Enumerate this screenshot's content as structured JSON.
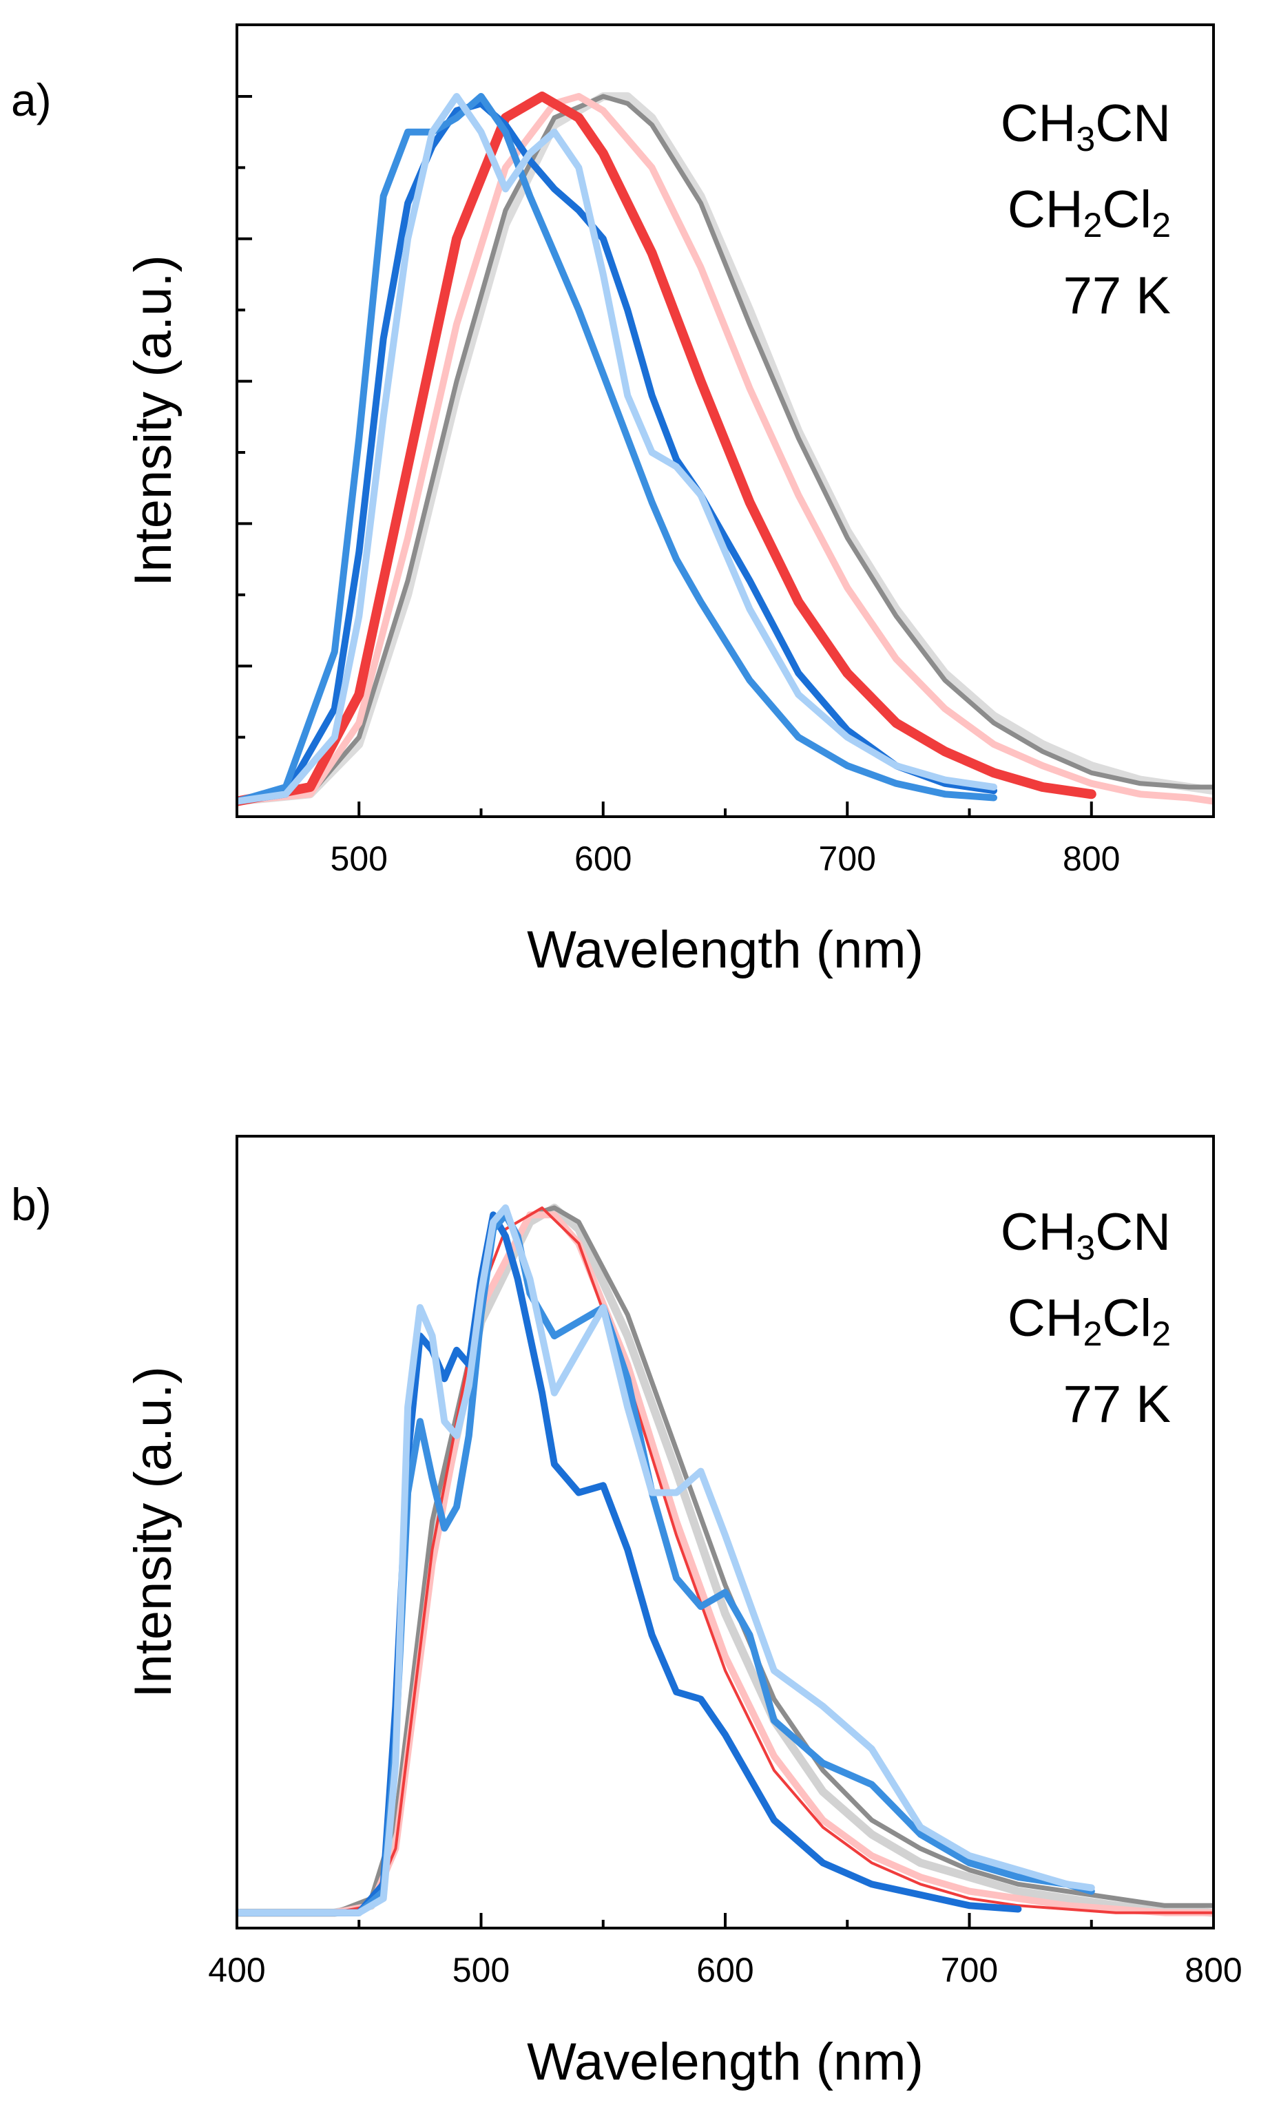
{
  "chart_data": [
    {
      "type": "line",
      "panel_label": "a)",
      "xlabel": "Wavelength (nm)",
      "ylabel": "Intensity (a.u.)",
      "xlim": [
        450,
        850
      ],
      "ylim": [
        0,
        1.0
      ],
      "x_ticks": [
        500,
        600,
        700,
        800
      ],
      "x_tick_labels": [
        "500",
        "600",
        "700",
        "800"
      ],
      "y_ticks_major": [
        0.2,
        0.4,
        0.6,
        0.8,
        1.0
      ],
      "y_tick_labels_shown": false,
      "grid": false,
      "legend": {
        "position": "top-right",
        "entries": [
          {
            "base": "CH",
            "sub1": "3",
            "mid": "CN",
            "sub2": "",
            "color": "#808080"
          },
          {
            "base": "CH",
            "sub1": "2",
            "mid": "Cl",
            "sub2": "2",
            "color": "#f03c3c"
          },
          {
            "base": "77 K",
            "sub1": "",
            "mid": "",
            "sub2": "",
            "color": "#1a6fd6"
          }
        ]
      },
      "series": [
        {
          "name": "CH3CN (light)",
          "color": "#dcdcdc",
          "width": 12,
          "x": [
            450,
            480,
            500,
            520,
            540,
            560,
            580,
            600,
            610,
            620,
            640,
            660,
            680,
            700,
            720,
            740,
            760,
            780,
            800,
            820,
            840,
            850
          ],
          "y": [
            0.01,
            0.02,
            0.09,
            0.3,
            0.58,
            0.82,
            0.96,
            1.0,
            1.0,
            0.97,
            0.86,
            0.7,
            0.53,
            0.39,
            0.28,
            0.19,
            0.13,
            0.09,
            0.06,
            0.04,
            0.03,
            0.025
          ]
        },
        {
          "name": "CH3CN",
          "color": "#8c8c8c",
          "width": 7,
          "x": [
            450,
            480,
            500,
            520,
            540,
            560,
            580,
            600,
            610,
            620,
            640,
            660,
            680,
            700,
            720,
            740,
            760,
            780,
            800,
            820,
            840,
            850
          ],
          "y": [
            0.01,
            0.02,
            0.1,
            0.32,
            0.6,
            0.84,
            0.97,
            1.0,
            0.99,
            0.96,
            0.85,
            0.68,
            0.52,
            0.38,
            0.27,
            0.18,
            0.12,
            0.08,
            0.05,
            0.035,
            0.03,
            0.03
          ]
        },
        {
          "name": "CH2Cl2 (light)",
          "color": "#ffc2c2",
          "width": 10,
          "x": [
            450,
            480,
            500,
            520,
            540,
            560,
            580,
            590,
            600,
            620,
            640,
            660,
            680,
            700,
            720,
            740,
            760,
            780,
            800,
            820,
            840,
            850
          ],
          "y": [
            0.01,
            0.02,
            0.12,
            0.38,
            0.68,
            0.9,
            0.99,
            1.0,
            0.98,
            0.9,
            0.76,
            0.59,
            0.44,
            0.31,
            0.21,
            0.14,
            0.09,
            0.06,
            0.035,
            0.02,
            0.015,
            0.01
          ]
        },
        {
          "name": "CH2Cl2",
          "color": "#f03c3c",
          "width": 14,
          "x": [
            450,
            480,
            500,
            520,
            540,
            560,
            575,
            590,
            600,
            620,
            640,
            660,
            680,
            700,
            720,
            740,
            760,
            780,
            800
          ],
          "y": [
            0.01,
            0.03,
            0.16,
            0.48,
            0.8,
            0.97,
            1.0,
            0.97,
            0.92,
            0.78,
            0.6,
            0.43,
            0.29,
            0.19,
            0.12,
            0.08,
            0.05,
            0.03,
            0.02
          ]
        },
        {
          "name": "77 K (dark)",
          "color": "#1a6fd6",
          "width": 10,
          "x": [
            450,
            470,
            490,
            500,
            510,
            520,
            530,
            540,
            550,
            560,
            570,
            580,
            590,
            600,
            610,
            620,
            630,
            640,
            660,
            680,
            700,
            720,
            740,
            760
          ],
          "y": [
            0.01,
            0.02,
            0.14,
            0.36,
            0.66,
            0.85,
            0.93,
            0.98,
            0.99,
            0.96,
            0.91,
            0.87,
            0.84,
            0.8,
            0.7,
            0.58,
            0.49,
            0.44,
            0.32,
            0.19,
            0.11,
            0.06,
            0.035,
            0.025
          ]
        },
        {
          "name": "77 K (medium)",
          "color": "#3a8fe0",
          "width": 10,
          "x": [
            450,
            470,
            490,
            500,
            510,
            520,
            530,
            540,
            550,
            560,
            570,
            580,
            590,
            600,
            610,
            620,
            630,
            640,
            660,
            680,
            700,
            720,
            740,
            760
          ],
          "y": [
            0.01,
            0.03,
            0.22,
            0.52,
            0.86,
            0.95,
            0.95,
            0.97,
            1.0,
            0.95,
            0.86,
            0.78,
            0.7,
            0.61,
            0.52,
            0.43,
            0.35,
            0.29,
            0.18,
            0.1,
            0.06,
            0.035,
            0.02,
            0.015
          ]
        },
        {
          "name": "77 K (light)",
          "color": "#a9d0f7",
          "width": 10,
          "x": [
            450,
            470,
            490,
            500,
            510,
            520,
            530,
            540,
            550,
            560,
            570,
            580,
            590,
            600,
            610,
            620,
            630,
            640,
            660,
            680,
            700,
            720,
            740,
            760
          ],
          "y": [
            0.01,
            0.02,
            0.1,
            0.27,
            0.55,
            0.8,
            0.95,
            1.0,
            0.95,
            0.87,
            0.92,
            0.95,
            0.9,
            0.75,
            0.58,
            0.5,
            0.48,
            0.44,
            0.28,
            0.16,
            0.1,
            0.06,
            0.04,
            0.03
          ]
        }
      ]
    },
    {
      "type": "line",
      "panel_label": "b)",
      "xlabel": "Wavelength (nm)",
      "ylabel": "Intensity (a.u.)",
      "xlim": [
        400,
        800
      ],
      "ylim": [
        0,
        1.0
      ],
      "x_ticks": [
        400,
        500,
        600,
        700,
        800
      ],
      "x_tick_labels": [
        "400",
        "500",
        "600",
        "700",
        "800"
      ],
      "y_ticks_major": [],
      "y_tick_labels_shown": false,
      "grid": false,
      "legend": {
        "position": "top-right",
        "entries": [
          {
            "base": "CH",
            "sub1": "3",
            "mid": "CN",
            "sub2": "",
            "color": "#808080"
          },
          {
            "base": "CH",
            "sub1": "2",
            "mid": "Cl",
            "sub2": "2",
            "color": "#f03c3c"
          },
          {
            "base": "77 K",
            "sub1": "",
            "mid": "",
            "sub2": "",
            "color": "#1a6fd6"
          }
        ]
      },
      "series": [
        {
          "name": "CH3CN (light)",
          "color": "#d2d2d2",
          "width": 12,
          "x": [
            400,
            440,
            455,
            465,
            480,
            500,
            520,
            530,
            540,
            560,
            580,
            600,
            620,
            640,
            660,
            680,
            700,
            720,
            740,
            760,
            780,
            800
          ],
          "y": [
            0.01,
            0.01,
            0.02,
            0.12,
            0.52,
            0.84,
            0.98,
            1.0,
            0.97,
            0.82,
            0.63,
            0.43,
            0.28,
            0.18,
            0.12,
            0.08,
            0.06,
            0.04,
            0.03,
            0.02,
            0.015,
            0.01
          ]
        },
        {
          "name": "CH3CN",
          "color": "#8c8c8c",
          "width": 7,
          "x": [
            400,
            440,
            455,
            465,
            480,
            500,
            520,
            530,
            540,
            560,
            580,
            600,
            620,
            640,
            660,
            680,
            700,
            720,
            740,
            760,
            780,
            800
          ],
          "y": [
            0.01,
            0.01,
            0.03,
            0.14,
            0.56,
            0.86,
            0.99,
            1.0,
            0.98,
            0.85,
            0.66,
            0.47,
            0.31,
            0.21,
            0.14,
            0.1,
            0.07,
            0.05,
            0.04,
            0.03,
            0.02,
            0.02
          ]
        },
        {
          "name": "CH2Cl2 (light)",
          "color": "#ffc0c0",
          "width": 10,
          "x": [
            400,
            440,
            455,
            465,
            480,
            500,
            520,
            530,
            540,
            560,
            580,
            600,
            620,
            640,
            660,
            680,
            700,
            720,
            740,
            760,
            780,
            800
          ],
          "y": [
            0.01,
            0.01,
            0.02,
            0.1,
            0.5,
            0.86,
            0.99,
            0.99,
            0.95,
            0.78,
            0.56,
            0.37,
            0.23,
            0.14,
            0.09,
            0.06,
            0.04,
            0.03,
            0.02,
            0.015,
            0.01,
            0.01
          ]
        },
        {
          "name": "CH2Cl2",
          "color": "#f03c3c",
          "width": 4,
          "x": [
            400,
            440,
            455,
            465,
            480,
            500,
            510,
            525,
            540,
            560,
            580,
            600,
            620,
            640,
            660,
            680,
            700,
            720,
            740,
            760,
            780,
            800
          ],
          "y": [
            0.01,
            0.01,
            0.02,
            0.1,
            0.52,
            0.88,
            0.97,
            1.0,
            0.95,
            0.76,
            0.54,
            0.35,
            0.21,
            0.13,
            0.08,
            0.05,
            0.03,
            0.02,
            0.015,
            0.01,
            0.01,
            0.01
          ]
        },
        {
          "name": "77 K (dark)",
          "color": "#1a6fd6",
          "width": 10,
          "x": [
            400,
            450,
            460,
            465,
            470,
            475,
            480,
            485,
            490,
            495,
            500,
            505,
            510,
            515,
            520,
            525,
            530,
            540,
            550,
            560,
            570,
            580,
            590,
            600,
            620,
            640,
            660,
            680,
            700,
            720
          ],
          "y": [
            0.01,
            0.01,
            0.05,
            0.3,
            0.65,
            0.82,
            0.8,
            0.76,
            0.8,
            0.78,
            0.9,
            0.99,
            0.96,
            0.9,
            0.82,
            0.74,
            0.64,
            0.6,
            0.61,
            0.52,
            0.4,
            0.32,
            0.31,
            0.26,
            0.14,
            0.08,
            0.05,
            0.035,
            0.02,
            0.015
          ]
        },
        {
          "name": "77 K (medium)",
          "color": "#3a8fe0",
          "width": 10,
          "x": [
            400,
            450,
            460,
            465,
            470,
            475,
            480,
            485,
            490,
            495,
            500,
            505,
            510,
            515,
            520,
            530,
            540,
            550,
            560,
            570,
            580,
            590,
            600,
            610,
            620,
            640,
            660,
            680,
            700,
            720,
            740,
            750
          ],
          "y": [
            0.01,
            0.01,
            0.04,
            0.25,
            0.6,
            0.7,
            0.62,
            0.55,
            0.58,
            0.68,
            0.85,
            0.97,
            0.99,
            0.96,
            0.88,
            0.82,
            0.84,
            0.86,
            0.76,
            0.6,
            0.48,
            0.44,
            0.46,
            0.4,
            0.28,
            0.22,
            0.19,
            0.12,
            0.08,
            0.06,
            0.05,
            0.04
          ]
        },
        {
          "name": "77 K (light)",
          "color": "#a9d0f7",
          "width": 10,
          "x": [
            400,
            450,
            460,
            465,
            470,
            475,
            480,
            485,
            490,
            495,
            500,
            505,
            510,
            520,
            530,
            540,
            550,
            560,
            570,
            580,
            590,
            600,
            620,
            640,
            660,
            680,
            700,
            720,
            740,
            750
          ],
          "y": [
            0.01,
            0.01,
            0.03,
            0.22,
            0.72,
            0.86,
            0.82,
            0.7,
            0.68,
            0.75,
            0.88,
            0.98,
            1.0,
            0.9,
            0.74,
            0.8,
            0.86,
            0.72,
            0.6,
            0.6,
            0.63,
            0.54,
            0.35,
            0.3,
            0.24,
            0.13,
            0.09,
            0.07,
            0.05,
            0.045
          ]
        }
      ]
    }
  ]
}
